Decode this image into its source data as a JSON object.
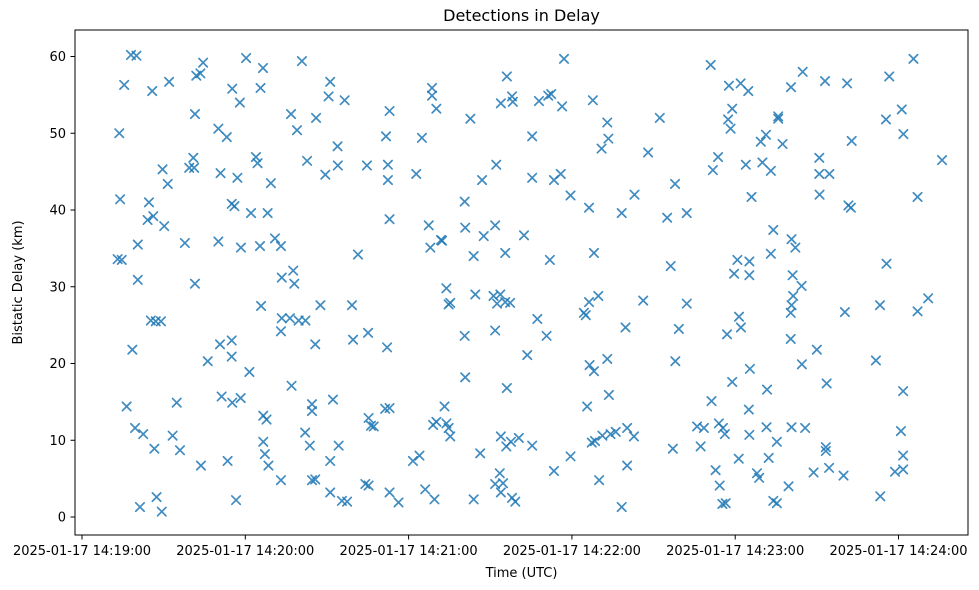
{
  "figure": {
    "title": "Detections in Delay",
    "background_color": "#ffffff",
    "spine_color": "#000000",
    "marker_glyph": "x",
    "marker_color": "#1f77b4"
  },
  "chart_data": {
    "type": "scatter",
    "title": "Detections in Delay",
    "xlabel": "Time (UTC)",
    "ylabel": "Bistatic Delay (km)",
    "legend": null,
    "grid": false,
    "marker": "x",
    "marker_color": "#1f77b4",
    "x_unit": "seconds after 2025-01-17 14:19:00 UTC",
    "xlim_seconds": [
      -3,
      326
    ],
    "ylim": [
      -2.4,
      63.5
    ],
    "x_ticks_seconds": [
      0,
      60,
      120,
      180,
      240,
      300
    ],
    "x_tick_labels": [
      "2025-01-17 14:19:00",
      "2025-01-17 14:20:00",
      "2025-01-17 14:21:00",
      "2025-01-17 14:22:00",
      "2025-01-17 14:23:00",
      "2025-01-17 14:24:00"
    ],
    "y_ticks": [
      0,
      10,
      20,
      30,
      40,
      50,
      60
    ],
    "y_tick_labels": [
      "0",
      "10",
      "20",
      "30",
      "40",
      "50",
      "60"
    ],
    "points": [
      [
        18,
        60.2
      ],
      [
        20,
        60.1
      ],
      [
        44.5,
        59.2
      ],
      [
        60.3,
        59.8
      ],
      [
        66.5,
        58.5
      ],
      [
        42,
        57.5
      ],
      [
        43.5,
        57.8
      ],
      [
        15.5,
        56.3
      ],
      [
        32,
        56.7
      ],
      [
        25.8,
        55.5
      ],
      [
        55.2,
        55.8
      ],
      [
        65.6,
        55.9
      ],
      [
        58,
        54
      ],
      [
        41.5,
        52.5
      ],
      [
        76.8,
        52.5
      ],
      [
        13.7,
        50
      ],
      [
        50.1,
        50.6
      ],
      [
        53.2,
        49.5
      ],
      [
        79,
        50.4
      ],
      [
        40.9,
        46.8
      ],
      [
        39.4,
        45.5
      ],
      [
        41.2,
        45.5
      ],
      [
        63.9,
        46.9
      ],
      [
        64.5,
        46.1
      ],
      [
        29.6,
        45.3
      ],
      [
        31.5,
        43.4
      ],
      [
        50.9,
        44.8
      ],
      [
        57.1,
        44.2
      ],
      [
        69.4,
        43.5
      ],
      [
        80.8,
        59.4
      ],
      [
        91.2,
        56.7
      ],
      [
        90.6,
        54.8
      ],
      [
        96.5,
        54.3
      ],
      [
        113,
        52.9
      ],
      [
        86,
        52
      ],
      [
        128.6,
        55.9
      ],
      [
        128.6,
        54.9
      ],
      [
        130.2,
        53.2
      ],
      [
        156.1,
        57.4
      ],
      [
        158,
        54.8
      ],
      [
        153.9,
        53.9
      ],
      [
        158.3,
        54.1
      ],
      [
        142.7,
        51.9
      ],
      [
        111.7,
        49.6
      ],
      [
        124.9,
        49.4
      ],
      [
        93.9,
        48.3
      ],
      [
        82.7,
        46.4
      ],
      [
        94,
        45.8
      ],
      [
        104.7,
        45.8
      ],
      [
        112.4,
        45.9
      ],
      [
        89.4,
        44.6
      ],
      [
        112.4,
        43.9
      ],
      [
        122.8,
        44.7
      ],
      [
        152.2,
        45.9
      ],
      [
        147,
        43.9
      ],
      [
        177.1,
        59.7
      ],
      [
        231,
        58.9
      ],
      [
        237.7,
        56.2
      ],
      [
        171.3,
        54.9
      ],
      [
        172.4,
        55.1
      ],
      [
        167.9,
        54.2
      ],
      [
        176.4,
        53.5
      ],
      [
        187.7,
        54.3
      ],
      [
        193,
        51.4
      ],
      [
        212.3,
        52
      ],
      [
        238.9,
        53.2
      ],
      [
        237.4,
        51.8
      ],
      [
        238.3,
        50.6
      ],
      [
        165.4,
        49.6
      ],
      [
        193.4,
        49.3
      ],
      [
        190.9,
        48
      ],
      [
        208,
        47.5
      ],
      [
        233.7,
        46.9
      ],
      [
        231.8,
        45.2
      ],
      [
        165.4,
        44.2
      ],
      [
        173.4,
        43.9
      ],
      [
        175.9,
        44.7
      ],
      [
        217.9,
        43.4
      ],
      [
        179.5,
        41.9
      ],
      [
        203,
        42
      ],
      [
        305.5,
        59.7
      ],
      [
        264.8,
        58
      ],
      [
        273,
        56.8
      ],
      [
        281.1,
        56.5
      ],
      [
        260.5,
        56
      ],
      [
        296.6,
        57.4
      ],
      [
        242,
        56.5
      ],
      [
        244.8,
        55.5
      ],
      [
        255.8,
        52.2
      ],
      [
        255.8,
        51.9
      ],
      [
        301.2,
        53.1
      ],
      [
        295.4,
        51.8
      ],
      [
        301.8,
        49.9
      ],
      [
        251.3,
        49.8
      ],
      [
        249.4,
        48.9
      ],
      [
        257.4,
        48.6
      ],
      [
        282.8,
        49
      ],
      [
        243.9,
        45.9
      ],
      [
        250,
        46.2
      ],
      [
        253.1,
        45.1
      ],
      [
        270.9,
        46.8
      ],
      [
        270.9,
        44.7
      ],
      [
        274.6,
        44.7
      ],
      [
        316,
        46.5
      ],
      [
        246,
        41.7
      ],
      [
        271,
        42
      ],
      [
        307,
        41.7
      ],
      [
        14,
        41.4
      ],
      [
        24.6,
        41
      ],
      [
        56,
        40.5
      ],
      [
        55,
        40.8
      ],
      [
        62.1,
        39.6
      ],
      [
        68.2,
        39.6
      ],
      [
        24.1,
        38.7
      ],
      [
        26.2,
        39.2
      ],
      [
        30.2,
        37.9
      ],
      [
        20.5,
        35.5
      ],
      [
        37.8,
        35.7
      ],
      [
        50.1,
        35.9
      ],
      [
        58.4,
        35.1
      ],
      [
        65.4,
        35.3
      ],
      [
        70.9,
        36.3
      ],
      [
        73.1,
        35.3
      ],
      [
        13.1,
        33.6
      ],
      [
        14.6,
        33.5
      ],
      [
        20.5,
        30.9
      ],
      [
        41.5,
        30.4
      ],
      [
        73.4,
        31.2
      ],
      [
        77.6,
        32.1
      ],
      [
        78,
        30.4
      ],
      [
        65.8,
        27.5
      ],
      [
        73.4,
        25.9
      ],
      [
        76.4,
        25.9
      ],
      [
        73.1,
        24.2
      ],
      [
        25.3,
        25.6
      ],
      [
        27.1,
        25.5
      ],
      [
        29,
        25.5
      ],
      [
        18.5,
        21.8
      ],
      [
        50.7,
        22.5
      ],
      [
        55,
        23
      ],
      [
        55,
        20.9
      ],
      [
        46.2,
        20.3
      ],
      [
        140.6,
        41.1
      ],
      [
        113,
        38.8
      ],
      [
        127.4,
        38
      ],
      [
        131.9,
        36.1
      ],
      [
        132.3,
        36
      ],
      [
        128,
        35.1
      ],
      [
        140.8,
        37.7
      ],
      [
        147.6,
        36.6
      ],
      [
        151.8,
        38
      ],
      [
        143.9,
        34
      ],
      [
        155.5,
        34.4
      ],
      [
        101.4,
        34.2
      ],
      [
        133.9,
        29.8
      ],
      [
        135.3,
        27.9
      ],
      [
        134.7,
        27.7
      ],
      [
        144.5,
        29
      ],
      [
        151.2,
        28.8
      ],
      [
        153.7,
        29
      ],
      [
        155.5,
        28
      ],
      [
        152.5,
        27.8
      ],
      [
        157.3,
        27.9
      ],
      [
        87.6,
        27.6
      ],
      [
        99.2,
        27.6
      ],
      [
        79.6,
        25.6
      ],
      [
        82.1,
        25.6
      ],
      [
        105.1,
        24
      ],
      [
        99.6,
        23.1
      ],
      [
        85.7,
        22.5
      ],
      [
        112.1,
        22.1
      ],
      [
        140.6,
        23.6
      ],
      [
        151.8,
        24.3
      ],
      [
        186.3,
        40.3
      ],
      [
        198.3,
        39.6
      ],
      [
        215,
        39
      ],
      [
        222.2,
        39.6
      ],
      [
        162.4,
        36.7
      ],
      [
        188.1,
        34.4
      ],
      [
        171.9,
        33.5
      ],
      [
        216.3,
        32.7
      ],
      [
        240.8,
        33.5
      ],
      [
        239.6,
        31.7
      ],
      [
        189.7,
        28.8
      ],
      [
        186.3,
        28
      ],
      [
        184.4,
        26.6
      ],
      [
        185.1,
        26.3
      ],
      [
        206.2,
        28.2
      ],
      [
        222.2,
        27.8
      ],
      [
        167.3,
        25.8
      ],
      [
        170.7,
        23.6
      ],
      [
        199.7,
        24.7
      ],
      [
        219.3,
        24.5
      ],
      [
        237,
        23.8
      ],
      [
        241.4,
        26.1
      ],
      [
        163.6,
        21.1
      ],
      [
        193,
        20.6
      ],
      [
        218,
        20.3
      ],
      [
        186.5,
        19.8
      ],
      [
        282.5,
        40.3
      ],
      [
        281.6,
        40.6
      ],
      [
        254,
        37.4
      ],
      [
        260.7,
        36.2
      ],
      [
        262.1,
        35.1
      ],
      [
        253.1,
        34.3
      ],
      [
        245.2,
        33.3
      ],
      [
        245.2,
        31.5
      ],
      [
        295.6,
        33
      ],
      [
        261.1,
        31.5
      ],
      [
        264.4,
        30.1
      ],
      [
        310.9,
        28.5
      ],
      [
        261.3,
        28.8
      ],
      [
        260.7,
        27.6
      ],
      [
        260.4,
        26.6
      ],
      [
        293.2,
        27.6
      ],
      [
        280.3,
        26.7
      ],
      [
        307,
        26.8
      ],
      [
        242.1,
        24.7
      ],
      [
        260.4,
        23.2
      ],
      [
        270,
        21.8
      ],
      [
        264.5,
        19.9
      ],
      [
        291.7,
        20.4
      ],
      [
        61.5,
        18.9
      ],
      [
        77,
        17.1
      ],
      [
        51.3,
        15.7
      ],
      [
        55.2,
        14.9
      ],
      [
        58.3,
        15.5
      ],
      [
        16.4,
        14.4
      ],
      [
        34.8,
        14.9
      ],
      [
        66.6,
        13.2
      ],
      [
        67.8,
        12.7
      ],
      [
        19.5,
        11.6
      ],
      [
        22.5,
        10.8
      ],
      [
        33.3,
        10.6
      ],
      [
        26.6,
        8.9
      ],
      [
        36,
        8.7
      ],
      [
        66.6,
        9.8
      ],
      [
        67.2,
        8.2
      ],
      [
        43.7,
        6.7
      ],
      [
        53.5,
        7.3
      ],
      [
        68.5,
        6.7
      ],
      [
        73.1,
        4.8
      ],
      [
        27.4,
        2.6
      ],
      [
        21.3,
        1.3
      ],
      [
        29.3,
        0.7
      ],
      [
        56.6,
        2.2
      ],
      [
        140.8,
        18.2
      ],
      [
        156.1,
        16.8
      ],
      [
        92.2,
        15.3
      ],
      [
        84.5,
        14.7
      ],
      [
        84.5,
        13.8
      ],
      [
        111.4,
        14.1
      ],
      [
        113,
        14.2
      ],
      [
        105.3,
        12.9
      ],
      [
        106.2,
        11.9
      ],
      [
        107.2,
        11.8
      ],
      [
        133.2,
        14.4
      ],
      [
        129,
        12
      ],
      [
        130.2,
        12.4
      ],
      [
        133.9,
        12.2
      ],
      [
        134.7,
        11.6
      ],
      [
        135.3,
        10.5
      ],
      [
        82,
        11
      ],
      [
        83.7,
        9.3
      ],
      [
        94.3,
        9.3
      ],
      [
        91.2,
        7.3
      ],
      [
        121.6,
        7.3
      ],
      [
        124,
        8
      ],
      [
        146.3,
        8.3
      ],
      [
        153.9,
        10.5
      ],
      [
        155.9,
        9.2
      ],
      [
        157.6,
        9.8
      ],
      [
        84.5,
        4.8
      ],
      [
        85.7,
        4.9
      ],
      [
        104.1,
        4.3
      ],
      [
        105.3,
        4.1
      ],
      [
        91.2,
        3.2
      ],
      [
        95.5,
        2.1
      ],
      [
        97.4,
        2
      ],
      [
        113,
        3.2
      ],
      [
        116.3,
        1.9
      ],
      [
        126.1,
        3.6
      ],
      [
        129.5,
        2.3
      ],
      [
        153.5,
        5.7
      ],
      [
        151.8,
        4.3
      ],
      [
        154.7,
        4.4
      ],
      [
        153.9,
        3.2
      ],
      [
        143.9,
        2.3
      ],
      [
        158,
        2.5
      ],
      [
        159.2,
        2
      ],
      [
        188.1,
        19
      ],
      [
        238.9,
        17.6
      ],
      [
        193.6,
        15.9
      ],
      [
        185.6,
        14.4
      ],
      [
        231.3,
        15.1
      ],
      [
        226,
        11.8
      ],
      [
        228.5,
        11.6
      ],
      [
        234,
        12.2
      ],
      [
        235.5,
        11.6
      ],
      [
        236.2,
        10.8
      ],
      [
        200.3,
        11.6
      ],
      [
        202.8,
        10.5
      ],
      [
        191.2,
        10.6
      ],
      [
        194.2,
        10.8
      ],
      [
        196.1,
        11.1
      ],
      [
        187.3,
        9.7
      ],
      [
        188.5,
        9.9
      ],
      [
        160.5,
        10.3
      ],
      [
        165.4,
        9.3
      ],
      [
        179.5,
        7.9
      ],
      [
        173.4,
        6
      ],
      [
        190,
        4.8
      ],
      [
        200.3,
        6.7
      ],
      [
        217.1,
        8.9
      ],
      [
        227.3,
        9.2
      ],
      [
        232.8,
        6.1
      ],
      [
        234.3,
        4.1
      ],
      [
        235.3,
        1.7
      ],
      [
        236.5,
        1.8
      ],
      [
        198.3,
        1.3
      ],
      [
        241.3,
        7.6
      ],
      [
        245.4,
        19.3
      ],
      [
        251.7,
        16.6
      ],
      [
        273.6,
        17.4
      ],
      [
        301.7,
        16.4
      ],
      [
        245,
        14
      ],
      [
        251.5,
        11.7
      ],
      [
        245.2,
        10.7
      ],
      [
        260.7,
        11.7
      ],
      [
        265.7,
        11.6
      ],
      [
        255.3,
        9.8
      ],
      [
        300.9,
        11.2
      ],
      [
        273.3,
        9.1
      ],
      [
        273.3,
        8.6
      ],
      [
        252.3,
        7.7
      ],
      [
        248,
        5.7
      ],
      [
        248.8,
        5.1
      ],
      [
        268.8,
        5.8
      ],
      [
        274.5,
        6.4
      ],
      [
        279.8,
        5.4
      ],
      [
        298.7,
        5.9
      ],
      [
        301.7,
        6.2
      ],
      [
        301.7,
        8
      ],
      [
        259.6,
        4
      ],
      [
        293.3,
        2.7
      ],
      [
        254,
        2.1
      ],
      [
        255.3,
        1.8
      ]
    ]
  }
}
